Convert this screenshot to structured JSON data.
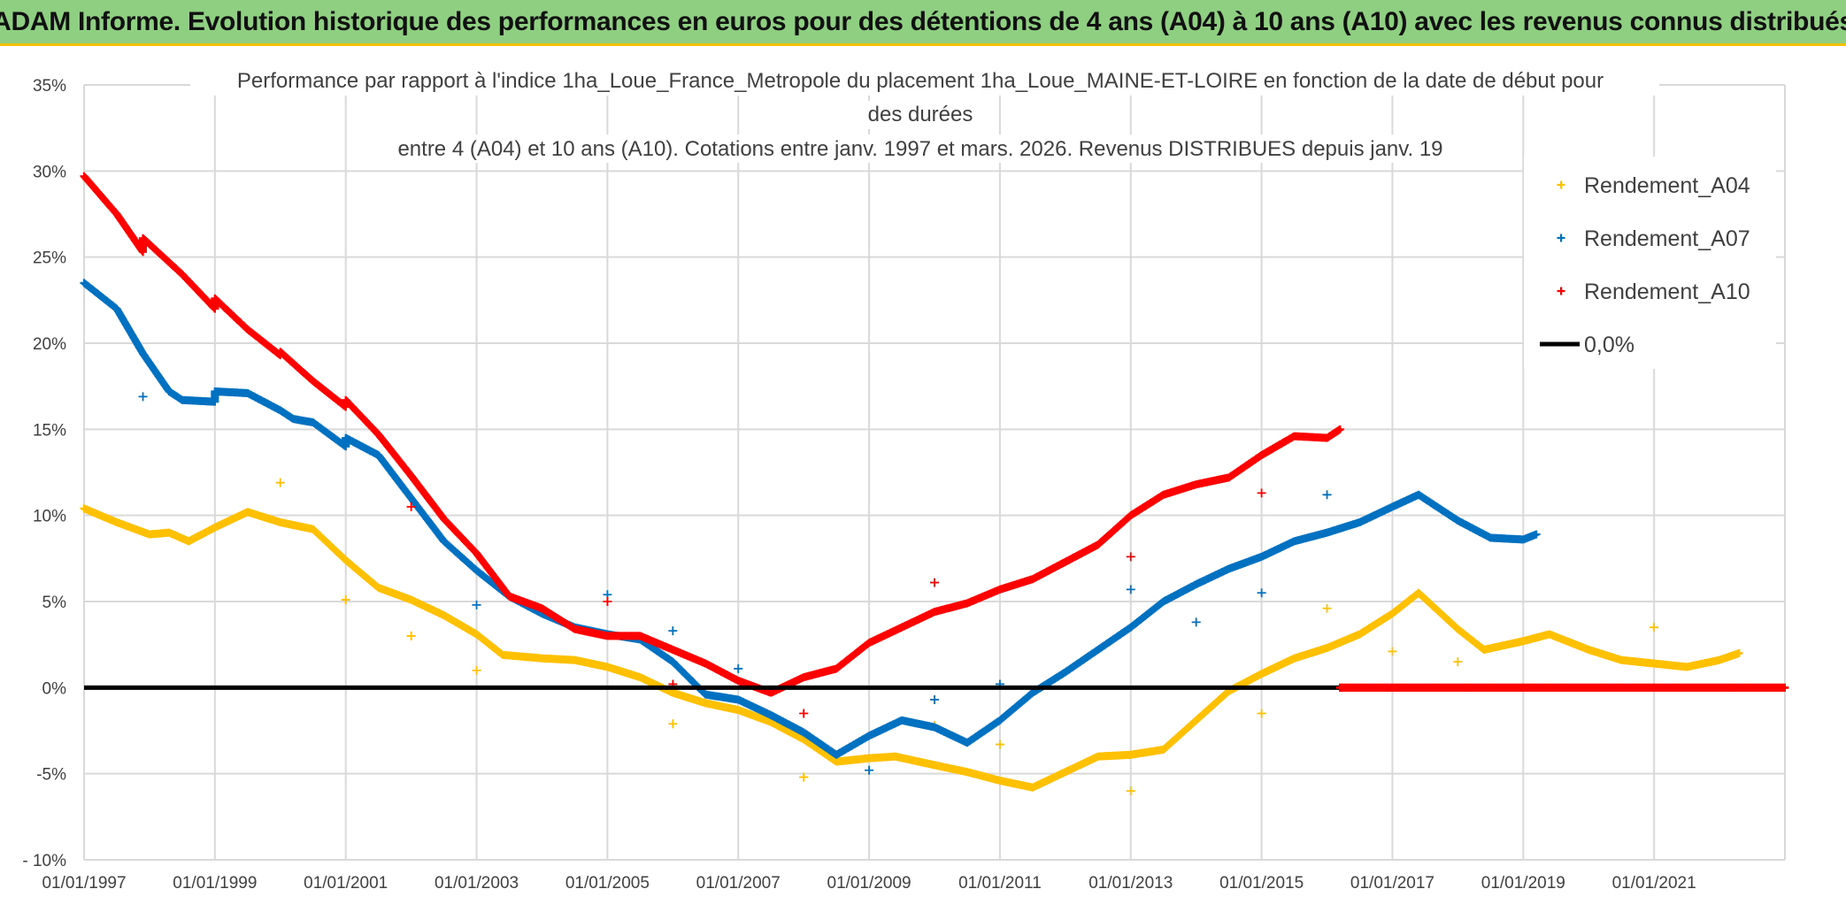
{
  "banner": {
    "title": "ADAM Informe. Evolution historique des performances en euros pour des détentions de 4 ans (A04) à 10 ans (A10) avec les revenus connus distribués"
  },
  "chart_data": {
    "type": "scatter",
    "title_lines": [
      "Performance par rapport à l'indice 1ha_Loue_France_Metropole  du placement 1ha_Loue_MAINE-ET-LOIRE en fonction de la date de début pour",
      "des durées",
      "entre 4 (A04) et 10 ans (A10). Cotations entre janv. 1997 et mars. 2026. Revenus DISTRIBUES depuis janv. 19"
    ],
    "xlim": [
      1997.0,
      2023.0
    ],
    "ylim": [
      -10,
      35
    ],
    "x_ticks": [
      {
        "value": 1997,
        "label": "01/01/1997"
      },
      {
        "value": 1999,
        "label": "01/01/1999"
      },
      {
        "value": 2001,
        "label": "01/01/2001"
      },
      {
        "value": 2003,
        "label": "01/01/2003"
      },
      {
        "value": 2005,
        "label": "01/01/2005"
      },
      {
        "value": 2007,
        "label": "01/01/2007"
      },
      {
        "value": 2009,
        "label": "01/01/2009"
      },
      {
        "value": 2011,
        "label": "01/01/2011"
      },
      {
        "value": 2013,
        "label": "01/01/2013"
      },
      {
        "value": 2015,
        "label": "01/01/2015"
      },
      {
        "value": 2017,
        "label": "01/01/2017"
      },
      {
        "value": 2019,
        "label": "01/01/2019"
      },
      {
        "value": 2021,
        "label": "01/01/2021"
      }
    ],
    "y_ticks": [
      {
        "value": 35,
        "label": "35%"
      },
      {
        "value": 30,
        "label": "30%"
      },
      {
        "value": 25,
        "label": "25%"
      },
      {
        "value": 20,
        "label": "20%"
      },
      {
        "value": 15,
        "label": "15%"
      },
      {
        "value": 10,
        "label": "10%"
      },
      {
        "value": 5,
        "label": "5%"
      },
      {
        "value": 0,
        "label": "0%"
      },
      {
        "value": -5,
        "label": "-5%"
      },
      {
        "value": -10,
        "label": "- 10%"
      }
    ],
    "legend": [
      {
        "name": "Rendement_A04",
        "color": "#ffc000",
        "kind": "marker"
      },
      {
        "name": "Rendement_A07",
        "color": "#0070c0",
        "kind": "marker"
      },
      {
        "name": "Rendement_A10",
        "color": "#ff0000",
        "kind": "marker"
      },
      {
        "name": "0,0%",
        "color": "#000000",
        "kind": "line"
      }
    ],
    "zero_line": {
      "name": "0,0%",
      "value": 0,
      "color": "#000000",
      "x_range": [
        1997.0,
        2023.0
      ]
    },
    "series": [
      {
        "name": "Rendement_A04",
        "color": "#ffc000",
        "points": [
          [
            1997.0,
            10.4
          ],
          [
            1997.5,
            9.6
          ],
          [
            1998.0,
            8.9
          ],
          [
            1998.3,
            9.0
          ],
          [
            1998.6,
            8.5
          ],
          [
            1999.0,
            9.3
          ],
          [
            1999.5,
            10.2
          ],
          [
            2000.0,
            9.6
          ],
          [
            2000.5,
            9.2
          ],
          [
            2001.0,
            7.4
          ],
          [
            2001.5,
            5.8
          ],
          [
            2002.0,
            5.1
          ],
          [
            2002.5,
            4.2
          ],
          [
            2003.0,
            3.1
          ],
          [
            2003.4,
            1.9
          ],
          [
            2004.0,
            1.7
          ],
          [
            2004.5,
            1.6
          ],
          [
            2005.0,
            1.2
          ],
          [
            2005.5,
            0.6
          ],
          [
            2006.0,
            -0.3
          ],
          [
            2006.5,
            -0.9
          ],
          [
            2007.0,
            -1.3
          ],
          [
            2007.5,
            -2.0
          ],
          [
            2008.0,
            -3.0
          ],
          [
            2008.5,
            -4.3
          ],
          [
            2009.0,
            -4.1
          ],
          [
            2009.4,
            -4.0
          ],
          [
            2010.0,
            -4.5
          ],
          [
            2010.5,
            -4.9
          ],
          [
            2011.0,
            -5.4
          ],
          [
            2011.5,
            -5.8
          ],
          [
            2012.0,
            -4.9
          ],
          [
            2012.5,
            -4.0
          ],
          [
            2013.0,
            -3.9
          ],
          [
            2013.5,
            -3.6
          ],
          [
            2014.0,
            -1.9
          ],
          [
            2014.5,
            -0.2
          ],
          [
            2015.0,
            0.8
          ],
          [
            2015.5,
            1.7
          ],
          [
            2016.0,
            2.3
          ],
          [
            2016.5,
            3.1
          ],
          [
            2017.0,
            4.3
          ],
          [
            2017.4,
            5.5
          ],
          [
            2018.0,
            3.4
          ],
          [
            2018.4,
            2.2
          ],
          [
            2019.0,
            2.7
          ],
          [
            2019.4,
            3.1
          ],
          [
            2020.0,
            2.2
          ],
          [
            2020.5,
            1.6
          ],
          [
            2021.0,
            1.4
          ],
          [
            2021.5,
            1.2
          ],
          [
            2022.0,
            1.6
          ],
          [
            2022.3,
            2.0
          ]
        ],
        "outliers": [
          [
            2000.0,
            11.9
          ],
          [
            2001.0,
            5.1
          ],
          [
            2002.0,
            3.0
          ],
          [
            2003.0,
            1.0
          ],
          [
            2006.0,
            -2.1
          ],
          [
            2008.0,
            -5.2
          ],
          [
            2010.0,
            -2.2
          ],
          [
            2011.0,
            -3.3
          ],
          [
            2013.0,
            -6.0
          ],
          [
            2015.0,
            -1.5
          ],
          [
            2016.0,
            4.6
          ],
          [
            2017.0,
            2.1
          ],
          [
            2018.0,
            1.5
          ],
          [
            2021.0,
            3.5
          ]
        ]
      },
      {
        "name": "Rendement_A07",
        "color": "#0070c0",
        "points": [
          [
            1997.0,
            23.5
          ],
          [
            1997.5,
            22.0
          ],
          [
            1997.9,
            19.4
          ],
          [
            1998.3,
            17.2
          ],
          [
            1998.5,
            16.7
          ],
          [
            1999.0,
            16.6
          ],
          [
            1999.0,
            17.2
          ],
          [
            1999.5,
            17.1
          ],
          [
            2000.0,
            16.1
          ],
          [
            2000.2,
            15.6
          ],
          [
            2000.5,
            15.4
          ],
          [
            2001.0,
            14.0
          ],
          [
            2001.0,
            14.5
          ],
          [
            2001.5,
            13.5
          ],
          [
            2002.0,
            11.0
          ],
          [
            2002.5,
            8.5
          ],
          [
            2003.0,
            6.8
          ],
          [
            2003.5,
            5.3
          ],
          [
            2004.0,
            4.3
          ],
          [
            2004.5,
            3.5
          ],
          [
            2005.0,
            3.1
          ],
          [
            2005.5,
            2.8
          ],
          [
            2006.0,
            1.5
          ],
          [
            2006.5,
            -0.4
          ],
          [
            2007.0,
            -0.7
          ],
          [
            2007.5,
            -1.6
          ],
          [
            2008.0,
            -2.6
          ],
          [
            2008.5,
            -3.9
          ],
          [
            2009.0,
            -2.8
          ],
          [
            2009.5,
            -1.9
          ],
          [
            2010.0,
            -2.3
          ],
          [
            2010.5,
            -3.2
          ],
          [
            2011.0,
            -1.9
          ],
          [
            2011.5,
            -0.3
          ],
          [
            2012.0,
            0.9
          ],
          [
            2012.5,
            2.2
          ],
          [
            2013.0,
            3.5
          ],
          [
            2013.5,
            5.0
          ],
          [
            2014.0,
            6.0
          ],
          [
            2014.5,
            6.9
          ],
          [
            2015.0,
            7.6
          ],
          [
            2015.5,
            8.5
          ],
          [
            2016.0,
            9.0
          ],
          [
            2016.5,
            9.6
          ],
          [
            2017.0,
            10.5
          ],
          [
            2017.4,
            11.2
          ],
          [
            2018.0,
            9.7
          ],
          [
            2018.5,
            8.7
          ],
          [
            2019.0,
            8.6
          ],
          [
            2019.2,
            8.9
          ]
        ],
        "outliers": [
          [
            1997.9,
            16.9
          ],
          [
            2003.0,
            4.8
          ],
          [
            2005.0,
            5.4
          ],
          [
            2006.0,
            3.3
          ],
          [
            2007.0,
            1.1
          ],
          [
            2009.0,
            -4.8
          ],
          [
            2010.0,
            -0.7
          ],
          [
            2011.0,
            0.2
          ],
          [
            2013.0,
            5.7
          ],
          [
            2014.0,
            3.8
          ],
          [
            2015.0,
            5.5
          ],
          [
            2016.0,
            11.2
          ]
        ]
      },
      {
        "name": "Rendement_A10",
        "color": "#ff0000",
        "points": [
          [
            1997.0,
            29.7
          ],
          [
            1997.5,
            27.5
          ],
          [
            1997.9,
            25.3
          ],
          [
            1997.9,
            26.1
          ],
          [
            1998.5,
            24.0
          ],
          [
            1999.0,
            22.0
          ],
          [
            1999.0,
            22.6
          ],
          [
            1999.5,
            20.8
          ],
          [
            2000.0,
            19.3
          ],
          [
            2000.0,
            19.5
          ],
          [
            2000.5,
            17.8
          ],
          [
            2001.0,
            16.3
          ],
          [
            2001.0,
            16.7
          ],
          [
            2001.5,
            14.7
          ],
          [
            2002.0,
            12.3
          ],
          [
            2002.5,
            9.8
          ],
          [
            2003.0,
            7.8
          ],
          [
            2003.5,
            5.3
          ],
          [
            2004.0,
            4.6
          ],
          [
            2004.5,
            3.4
          ],
          [
            2005.0,
            3.0
          ],
          [
            2005.5,
            3.0
          ],
          [
            2006.0,
            2.2
          ],
          [
            2006.5,
            1.4
          ],
          [
            2007.0,
            0.4
          ],
          [
            2007.5,
            -0.3
          ],
          [
            2008.0,
            0.6
          ],
          [
            2008.5,
            1.1
          ],
          [
            2009.0,
            2.6
          ],
          [
            2009.5,
            3.5
          ],
          [
            2010.0,
            4.4
          ],
          [
            2010.5,
            4.9
          ],
          [
            2011.0,
            5.7
          ],
          [
            2011.5,
            6.3
          ],
          [
            2012.0,
            7.3
          ],
          [
            2012.5,
            8.3
          ],
          [
            2013.0,
            10.0
          ],
          [
            2013.5,
            11.2
          ],
          [
            2014.0,
            11.8
          ],
          [
            2014.5,
            12.2
          ],
          [
            2015.0,
            13.5
          ],
          [
            2015.5,
            14.6
          ],
          [
            2016.0,
            14.5
          ],
          [
            2016.2,
            15.0
          ]
        ],
        "tail": [
          [
            2016.2,
            0.0
          ],
          [
            2023.0,
            0.0
          ]
        ],
        "outliers": [
          [
            2002.0,
            10.5
          ],
          [
            2005.0,
            5.0
          ],
          [
            2006.0,
            0.2
          ],
          [
            2008.0,
            -1.5
          ],
          [
            2010.0,
            6.1
          ],
          [
            2013.0,
            7.6
          ],
          [
            2015.0,
            11.3
          ]
        ]
      }
    ]
  }
}
